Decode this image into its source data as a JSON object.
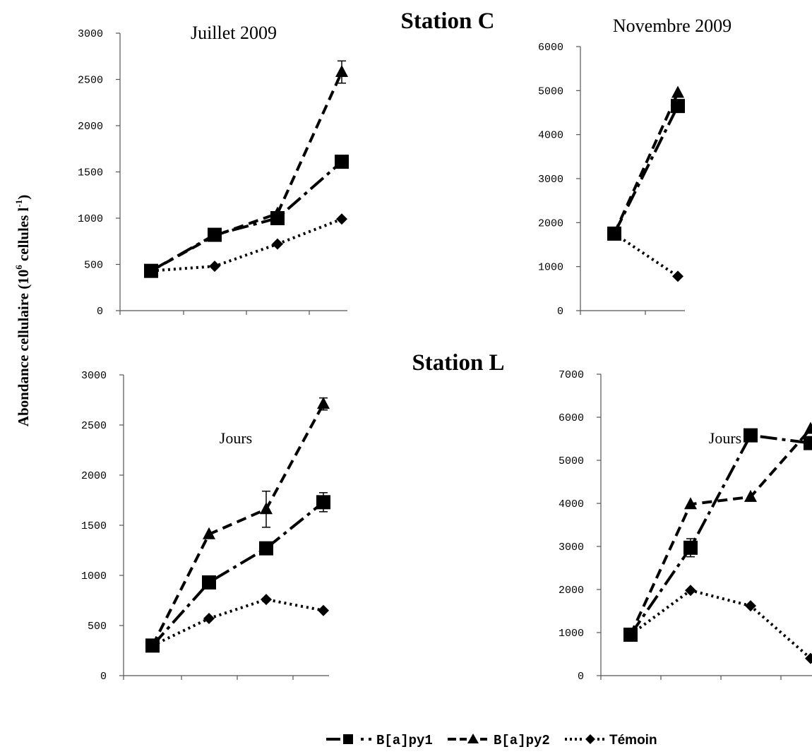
{
  "figure": {
    "ylabel_main": "Abondance  cellulaire (10",
    "ylabel_exp": "6",
    "ylabel_unit": " cellules l",
    "ylabel_unit_exp": "-1",
    "ylabel_close": ")",
    "station_c": "Station C",
    "station_l": "Station L",
    "legend": [
      "B[a]py1",
      "B[a]py2",
      "Témoin"
    ]
  },
  "chart_data": [
    {
      "type": "line",
      "station": "Station C",
      "title": "Juillet 2009",
      "xlabel": "",
      "ylabel": "",
      "ylim": [
        0,
        3000
      ],
      "yticks": [
        "0",
        "500",
        "1000",
        "1500",
        "2000",
        "2500",
        "3000"
      ],
      "grid": false,
      "series": [
        {
          "name": "B[a]py1",
          "values": [
            430,
            820,
            1000,
            1610
          ],
          "error": [
            0,
            0,
            0,
            0
          ]
        },
        {
          "name": "B[a]py2",
          "values": [
            430,
            810,
            1050,
            2580
          ],
          "error": [
            0,
            0,
            0,
            120
          ]
        },
        {
          "name": "Témoin",
          "values": [
            430,
            480,
            720,
            990
          ],
          "error": [
            0,
            0,
            0,
            0
          ]
        }
      ]
    },
    {
      "type": "line",
      "station": "Station C",
      "title": "Novembre 2009",
      "xlabel": "",
      "ylabel": "",
      "ylim": [
        0,
        6000
      ],
      "yticks": [
        "0",
        "1000",
        "2000",
        "3000",
        "4000",
        "5000",
        "6000"
      ],
      "grid": false,
      "series": [
        {
          "name": "B[a]py1",
          "values": [
            1750,
            4650
          ],
          "error": [
            0,
            0
          ]
        },
        {
          "name": "B[a]py2",
          "values": [
            1750,
            4950
          ],
          "error": [
            0,
            0
          ]
        },
        {
          "name": "Témoin",
          "values": [
            1750,
            780
          ],
          "error": [
            0,
            0
          ]
        }
      ]
    },
    {
      "type": "line",
      "station": "Station L",
      "title": "",
      "xlabel": "Jours",
      "ylabel": "",
      "ylim": [
        0,
        3000
      ],
      "yticks": [
        "0",
        "500",
        "1000",
        "1500",
        "2000",
        "2500",
        "3000"
      ],
      "grid": false,
      "series": [
        {
          "name": "B[a]py1",
          "values": [
            300,
            930,
            1270,
            1730
          ],
          "error": [
            0,
            0,
            0,
            95
          ]
        },
        {
          "name": "B[a]py2",
          "values": [
            300,
            1410,
            1660,
            2710
          ],
          "error": [
            0,
            0,
            180,
            60
          ]
        },
        {
          "name": "Témoin",
          "values": [
            300,
            570,
            760,
            650
          ],
          "error": [
            0,
            0,
            0,
            0
          ]
        }
      ]
    },
    {
      "type": "line",
      "station": "Station L",
      "title": "",
      "xlabel": "Jours",
      "ylabel": "",
      "ylim": [
        0,
        7000
      ],
      "yticks": [
        "0",
        "1000",
        "2000",
        "3000",
        "4000",
        "5000",
        "6000",
        "7000"
      ],
      "grid": false,
      "series": [
        {
          "name": "B[a]py1",
          "values": [
            950,
            2970,
            5580,
            5400
          ],
          "error": [
            0,
            210,
            0,
            0
          ]
        },
        {
          "name": "B[a]py2",
          "values": [
            950,
            3980,
            4150,
            5730
          ],
          "error": [
            0,
            0,
            0,
            0
          ]
        },
        {
          "name": "Témoin",
          "values": [
            950,
            1980,
            1620,
            400
          ],
          "error": [
            0,
            0,
            0,
            0
          ]
        }
      ]
    }
  ]
}
